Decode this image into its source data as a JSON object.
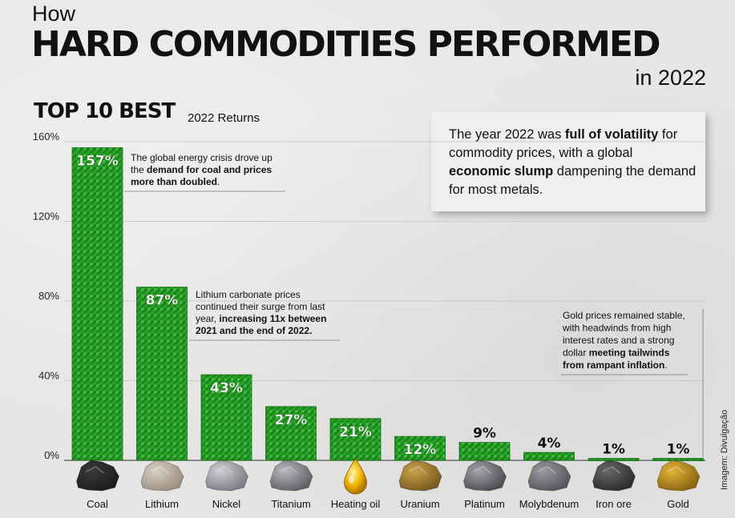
{
  "header": {
    "how": "How",
    "title": "HARD COMMODITIES PERFORMED",
    "year": "in 2022",
    "section_title": "TOP 10 BEST",
    "section_subtitle": "2022 Returns"
  },
  "callout": {
    "part1": "The year 2022 was ",
    "bold1": "full of volatility",
    "part2": " for commodity prices, with a global ",
    "bold2": "economic slump",
    "part3": " dampening the demand for most metals."
  },
  "credit": "Imagem: Divulgação",
  "colors": {
    "bar_green": "#2fae2f",
    "bar_dark": "#1a7a1a",
    "text": "#111111",
    "background": "#e6e6e4"
  },
  "icons": [
    "coal-rock-icon",
    "lithium-rock-icon",
    "nickel-rock-icon",
    "titanium-rock-icon",
    "oil-drop-icon",
    "uranium-rock-icon",
    "platinum-rock-icon",
    "molybdenum-rock-icon",
    "iron-ore-rock-icon",
    "gold-nugget-icon"
  ],
  "chart_data": {
    "type": "bar",
    "title": "TOP 10 BEST",
    "subtitle": "2022 Returns",
    "categories": [
      "Coal",
      "Lithium",
      "Nickel",
      "Titanium",
      "Heating oil",
      "Uranium",
      "Platinum",
      "Molybdenum",
      "Iron ore",
      "Gold"
    ],
    "values": [
      157,
      87,
      43,
      27,
      21,
      12,
      9,
      4,
      1,
      1
    ],
    "value_labels": [
      "157%",
      "87%",
      "43%",
      "27%",
      "21%",
      "12%",
      "9%",
      "4%",
      "1%",
      "1%"
    ],
    "yticks": [
      "0%",
      "40%",
      "80%",
      "120%",
      "160%"
    ],
    "ylim": [
      0,
      160
    ],
    "grid": true,
    "annotations": [
      {
        "category": "Coal",
        "lines": [
          [
            {
              "t": "The global energy crisis drove up",
              "b": false
            }
          ],
          [
            {
              "t": "the ",
              "b": false
            },
            {
              "t": "demand for coal and prices",
              "b": true
            }
          ],
          [
            {
              "t": "more than doubled",
              "b": true
            },
            {
              "t": ".",
              "b": false
            }
          ]
        ]
      },
      {
        "category": "Lithium",
        "lines": [
          [
            {
              "t": "Lithium carbonate prices",
              "b": false
            }
          ],
          [
            {
              "t": "continued their surge from last",
              "b": false
            }
          ],
          [
            {
              "t": "year, ",
              "b": false
            },
            {
              "t": "increasing 11x between",
              "b": true
            }
          ],
          [
            {
              "t": "2021 and the end of 2022.",
              "b": true
            }
          ]
        ]
      },
      {
        "category": "Gold",
        "lines": [
          [
            {
              "t": "Gold prices remained stable,",
              "b": false
            }
          ],
          [
            {
              "t": "with headwinds from high",
              "b": false
            }
          ],
          [
            {
              "t": "interest rates and a strong",
              "b": false
            }
          ],
          [
            {
              "t": "dollar ",
              "b": false
            },
            {
              "t": "meeting tailwinds",
              "b": true
            }
          ],
          [
            {
              "t": "from rampant inflation",
              "b": true
            },
            {
              "t": ".",
              "b": false
            }
          ]
        ]
      }
    ]
  }
}
